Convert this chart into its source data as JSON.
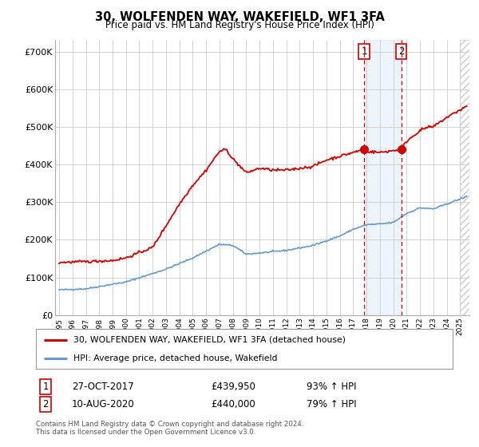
{
  "title": "30, WOLFENDEN WAY, WAKEFIELD, WF1 3FA",
  "subtitle": "Price paid vs. HM Land Registry's House Price Index (HPI)",
  "ylabel_ticks": [
    "£0",
    "£100K",
    "£200K",
    "£300K",
    "£400K",
    "£500K",
    "£600K",
    "£700K"
  ],
  "ytick_values": [
    0,
    100000,
    200000,
    300000,
    400000,
    500000,
    600000,
    700000
  ],
  "ylim": [
    0,
    730000
  ],
  "xlim_start": 1994.7,
  "xlim_end": 2025.7,
  "red_line_color": "#cc0000",
  "blue_line_color": "#6699cc",
  "shade_color": "#cce0f5",
  "marker1_date": 2017.82,
  "marker2_date": 2020.6,
  "marker1_price": 439950,
  "marker2_price": 440000,
  "legend_label1": "30, WOLFENDEN WAY, WAKEFIELD, WF1 3FA (detached house)",
  "legend_label2": "HPI: Average price, detached house, Wakefield",
  "annot1_num": "1",
  "annot2_num": "2",
  "annot1_text": "27-OCT-2017",
  "annot1_price": "£439,950",
  "annot1_hpi": "93% ↑ HPI",
  "annot2_text": "10-AUG-2020",
  "annot2_price": "£440,000",
  "annot2_hpi": "79% ↑ HPI",
  "footer": "Contains HM Land Registry data © Crown copyright and database right 2024.\nThis data is licensed under the Open Government Licence v3.0.",
  "background_color": "#ffffff",
  "plot_bg_color": "#ffffff",
  "grid_color": "#cccccc",
  "hatch_color": "#cccccc",
  "hpi_key_years": [
    1995,
    1997,
    2000,
    2003,
    2005,
    2007,
    2008,
    2009,
    2010,
    2012,
    2014,
    2016,
    2017,
    2018,
    2019,
    2020,
    2021,
    2022,
    2023,
    2024,
    2025.5
  ],
  "hpi_key_vals": [
    67000,
    70000,
    88000,
    122000,
    152000,
    188000,
    185000,
    162000,
    165000,
    172000,
    185000,
    210000,
    228000,
    240000,
    242000,
    246000,
    270000,
    285000,
    282000,
    295000,
    315000
  ],
  "house_key_years": [
    1995,
    1997,
    1999,
    2000,
    2002,
    2004,
    2005,
    2006,
    2007,
    2007.5,
    2008,
    2009,
    2010,
    2011,
    2012,
    2013,
    2014,
    2015,
    2016,
    2017,
    2017.82,
    2018,
    2019,
    2020,
    2020.6,
    2021,
    2022,
    2022.5,
    2023,
    2024,
    2025,
    2025.5
  ],
  "house_key_vals": [
    140000,
    142000,
    145000,
    152000,
    180000,
    295000,
    345000,
    385000,
    435000,
    440000,
    415000,
    378000,
    390000,
    385000,
    385000,
    390000,
    395000,
    412000,
    422000,
    432000,
    439950,
    435000,
    432000,
    437000,
    440000,
    462000,
    490000,
    498000,
    500000,
    525000,
    545000,
    555000
  ]
}
